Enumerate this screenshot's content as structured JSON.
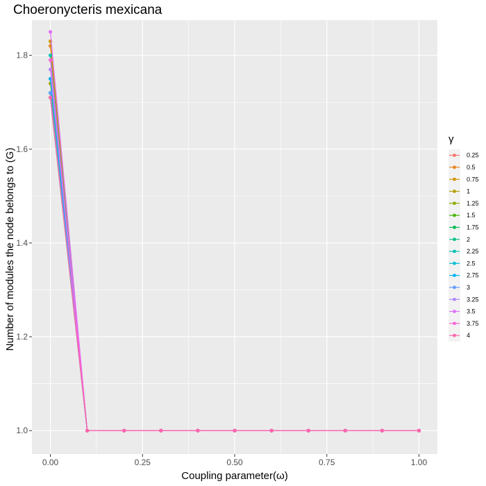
{
  "chart_data": {
    "type": "line",
    "title": "Choeronycteris mexicana",
    "xlabel": "Coupling parameter(ω)",
    "ylabel": "Number of modules the node belongs to (G)",
    "xlim": [
      -0.05,
      1.05
    ],
    "ylim": [
      0.95,
      1.875
    ],
    "x_ticks": [
      0.0,
      0.25,
      0.5,
      0.75,
      1.0
    ],
    "x_tick_labels": [
      "0.00",
      "0.25",
      "0.50",
      "0.75",
      "1.00"
    ],
    "y_ticks": [
      1.0,
      1.2,
      1.4,
      1.6,
      1.8
    ],
    "y_tick_labels": [
      "1.0",
      "1.2",
      "1.4",
      "1.6",
      "1.8"
    ],
    "grid": true,
    "legend_title": "γ",
    "legend_position": "right",
    "x": [
      0.0,
      0.1,
      0.2,
      0.3,
      0.4,
      0.5,
      0.6,
      0.7,
      0.8,
      0.9,
      1.0
    ],
    "series": [
      {
        "name": "0.25",
        "color": "#F8766D",
        "values": [
          1.71,
          1,
          1,
          1,
          1,
          1,
          1,
          1,
          1,
          1,
          1
        ]
      },
      {
        "name": "0.5",
        "color": "#E7851E",
        "values": [
          1.82,
          1,
          1,
          1,
          1,
          1,
          1,
          1,
          1,
          1,
          1
        ]
      },
      {
        "name": "0.75",
        "color": "#D09400",
        "values": [
          1.83,
          1,
          1,
          1,
          1,
          1,
          1,
          1,
          1,
          1,
          1
        ]
      },
      {
        "name": "1",
        "color": "#B2A100",
        "values": [
          1.74,
          1,
          1,
          1,
          1,
          1,
          1,
          1,
          1,
          1,
          1
        ]
      },
      {
        "name": "1.25",
        "color": "#89AC00",
        "values": [
          1.72,
          1,
          1,
          1,
          1,
          1,
          1,
          1,
          1,
          1,
          1
        ]
      },
      {
        "name": "1.5",
        "color": "#45B500",
        "values": [
          1.71,
          1,
          1,
          1,
          1,
          1,
          1,
          1,
          1,
          1,
          1
        ]
      },
      {
        "name": "1.75",
        "color": "#00BC51",
        "values": [
          1.72,
          1,
          1,
          1,
          1,
          1,
          1,
          1,
          1,
          1,
          1
        ]
      },
      {
        "name": "2",
        "color": "#00C087",
        "values": [
          1.71,
          1,
          1,
          1,
          1,
          1,
          1,
          1,
          1,
          1,
          1
        ]
      },
      {
        "name": "2.25",
        "color": "#00C0B2",
        "values": [
          1.8,
          1,
          1,
          1,
          1,
          1,
          1,
          1,
          1,
          1,
          1
        ]
      },
      {
        "name": "2.5",
        "color": "#00BCD6",
        "values": [
          1.75,
          1,
          1,
          1,
          1,
          1,
          1,
          1,
          1,
          1,
          1
        ]
      },
      {
        "name": "2.75",
        "color": "#00B3F2",
        "values": [
          1.75,
          1,
          1,
          1,
          1,
          1,
          1,
          1,
          1,
          1,
          1
        ]
      },
      {
        "name": "3",
        "color": "#619CFF",
        "values": [
          1.72,
          1,
          1,
          1,
          1,
          1,
          1,
          1,
          1,
          1,
          1
        ]
      },
      {
        "name": "3.25",
        "color": "#B186FF",
        "values": [
          1.77,
          1,
          1,
          1,
          1,
          1,
          1,
          1,
          1,
          1,
          1
        ]
      },
      {
        "name": "3.5",
        "color": "#DF70F8",
        "values": [
          1.85,
          1,
          1,
          1,
          1,
          1,
          1,
          1,
          1,
          1,
          1
        ]
      },
      {
        "name": "3.75",
        "color": "#F962DD",
        "values": [
          1.79,
          1,
          1,
          1,
          1,
          1,
          1,
          1,
          1,
          1,
          1
        ]
      },
      {
        "name": "4",
        "color": "#FF65AC",
        "values": [
          1.71,
          1,
          1,
          1,
          1,
          1,
          1,
          1,
          1,
          1,
          1
        ]
      }
    ]
  }
}
